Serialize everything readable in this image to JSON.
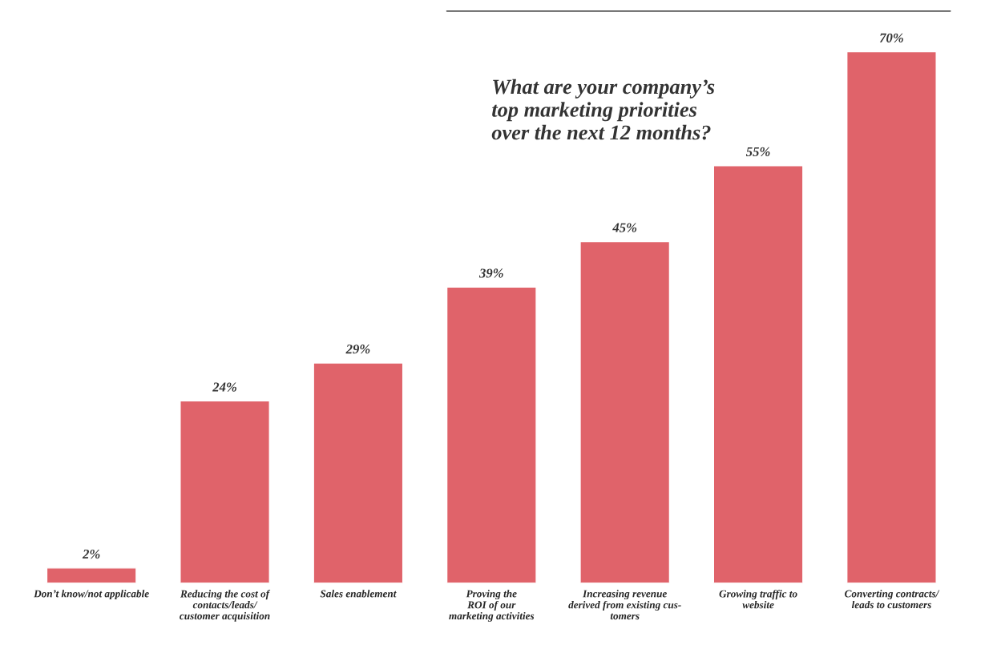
{
  "chart_data": {
    "type": "bar",
    "title": "What are your company’s\ntop marketing priorities\nover the next 12 months?",
    "categories": [
      "Don’t know/not applicable",
      "Reducing the cost of\ncontacts/leads/\ncustomer acquisition",
      "Sales enablement",
      "Proving the\nROI of our\nmarketing activities",
      "Increasing revenue\nderived from existing cus-\ntomers",
      "Growing traffic to\nwebsite",
      "Converting contracts/\nleads to customers"
    ],
    "values": [
      2,
      24,
      29,
      39,
      45,
      55,
      70
    ],
    "color": "#e0636a",
    "data_labels": true,
    "value_labels": [
      "2%",
      "24%",
      "29%",
      "39%",
      "45%",
      "55%",
      "70%"
    ],
    "grid": false
  }
}
